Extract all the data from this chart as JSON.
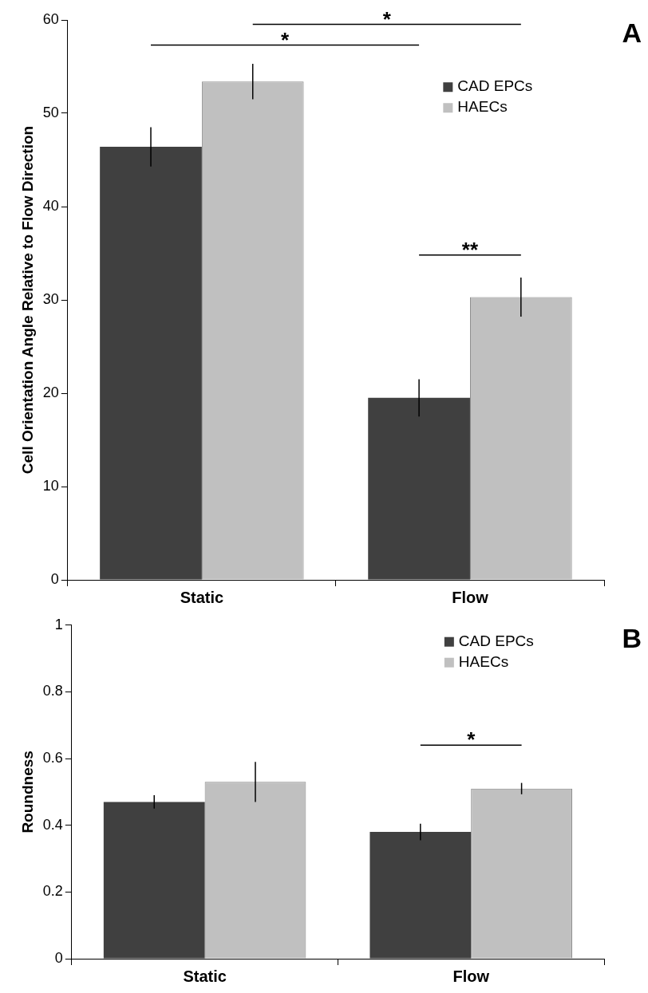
{
  "chart_data": [
    {
      "type": "bar",
      "ylabel": "Cell Orientation Angle Relative to Flow Direction",
      "categories": [
        "Static",
        "Flow"
      ],
      "legend": "top right",
      "ylim": [
        0,
        60
      ],
      "yticks": [
        0,
        10,
        20,
        30,
        40,
        50,
        60
      ],
      "series": [
        {
          "name": "CAD EPCs",
          "color": "#404040",
          "values": [
            46.4,
            19.5
          ],
          "errors": [
            2.1,
            2.0
          ]
        },
        {
          "name": "HAECs",
          "color": "#c0c0c0",
          "values": [
            53.4,
            30.3
          ],
          "errors": [
            1.9,
            2.1
          ]
        }
      ],
      "annotations": [
        "A",
        "*",
        "*",
        "**"
      ]
    },
    {
      "type": "bar",
      "ylabel": "Roundness",
      "categories": [
        "Static",
        "Flow"
      ],
      "legend": "top right",
      "ylim": [
        0,
        1
      ],
      "yticks": [
        0,
        0.2,
        0.4,
        0.6,
        0.8,
        1
      ],
      "series": [
        {
          "name": "CAD EPCs",
          "color": "#404040",
          "values": [
            0.47,
            0.38
          ],
          "errors": [
            0.02,
            0.025
          ]
        },
        {
          "name": "HAECs",
          "color": "#c0c0c0",
          "values": [
            0.53,
            0.51
          ],
          "errors": [
            0.06,
            0.017
          ]
        }
      ],
      "annotations": [
        "B",
        "*"
      ]
    }
  ]
}
